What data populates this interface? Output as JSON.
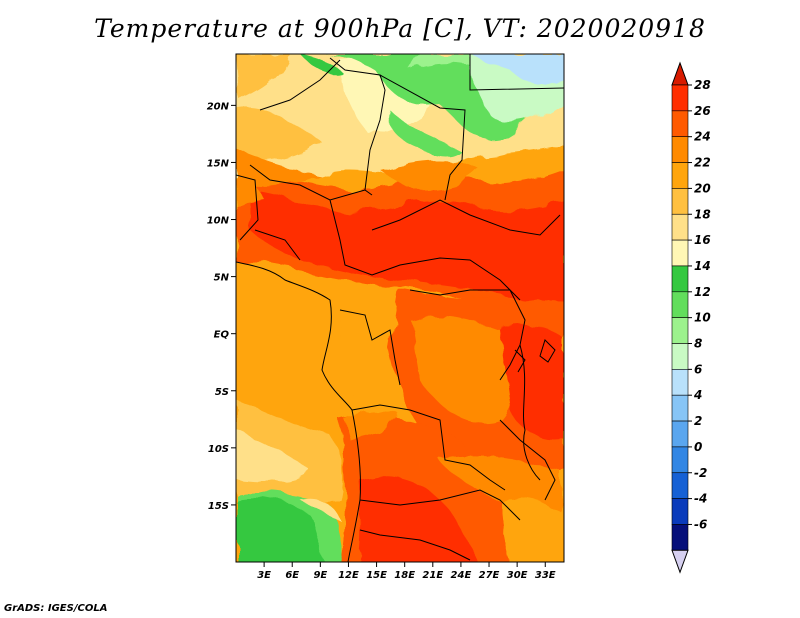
{
  "title": "Temperature at 900hPa [C], VT: 2020020918",
  "credit": "GrADS: IGES/COLA",
  "map": {
    "lat_ticks": [
      "20N",
      "15N",
      "10N",
      "5N",
      "EQ",
      "5S",
      "10S",
      "15S"
    ],
    "lat_values": [
      20,
      15,
      10,
      5,
      0,
      -5,
      -10,
      -15
    ],
    "lon_ticks": [
      "3E",
      "6E",
      "9E",
      "12E",
      "15E",
      "18E",
      "21E",
      "24E",
      "27E",
      "30E",
      "33E"
    ],
    "lon_values": [
      3,
      6,
      9,
      12,
      15,
      18,
      21,
      24,
      27,
      30,
      33
    ],
    "lon_range": [
      0,
      35
    ],
    "lat_range": [
      -20,
      24.5
    ]
  },
  "colorbar": {
    "levels": [
      "28",
      "26",
      "24",
      "22",
      "20",
      "18",
      "16",
      "14",
      "12",
      "10",
      "8",
      "6",
      "4",
      "2",
      "0",
      "-2",
      "-4",
      "-6"
    ],
    "colors": [
      "#ff2e00",
      "#ff5a00",
      "#ff8a00",
      "#ffa50d",
      "#ffc040",
      "#ffe089",
      "#fff7b5",
      "#34c840",
      "#62de5c",
      "#9cf28d",
      "#c9fac4",
      "#b9e1fb",
      "#87c5f6",
      "#5aa6ef",
      "#3286e4",
      "#1661d5",
      "#0a3bbb",
      "#06107a"
    ],
    "top_arrow_color": "#d81b00",
    "bottom_arrow_color": "#d6d0f0"
  }
}
